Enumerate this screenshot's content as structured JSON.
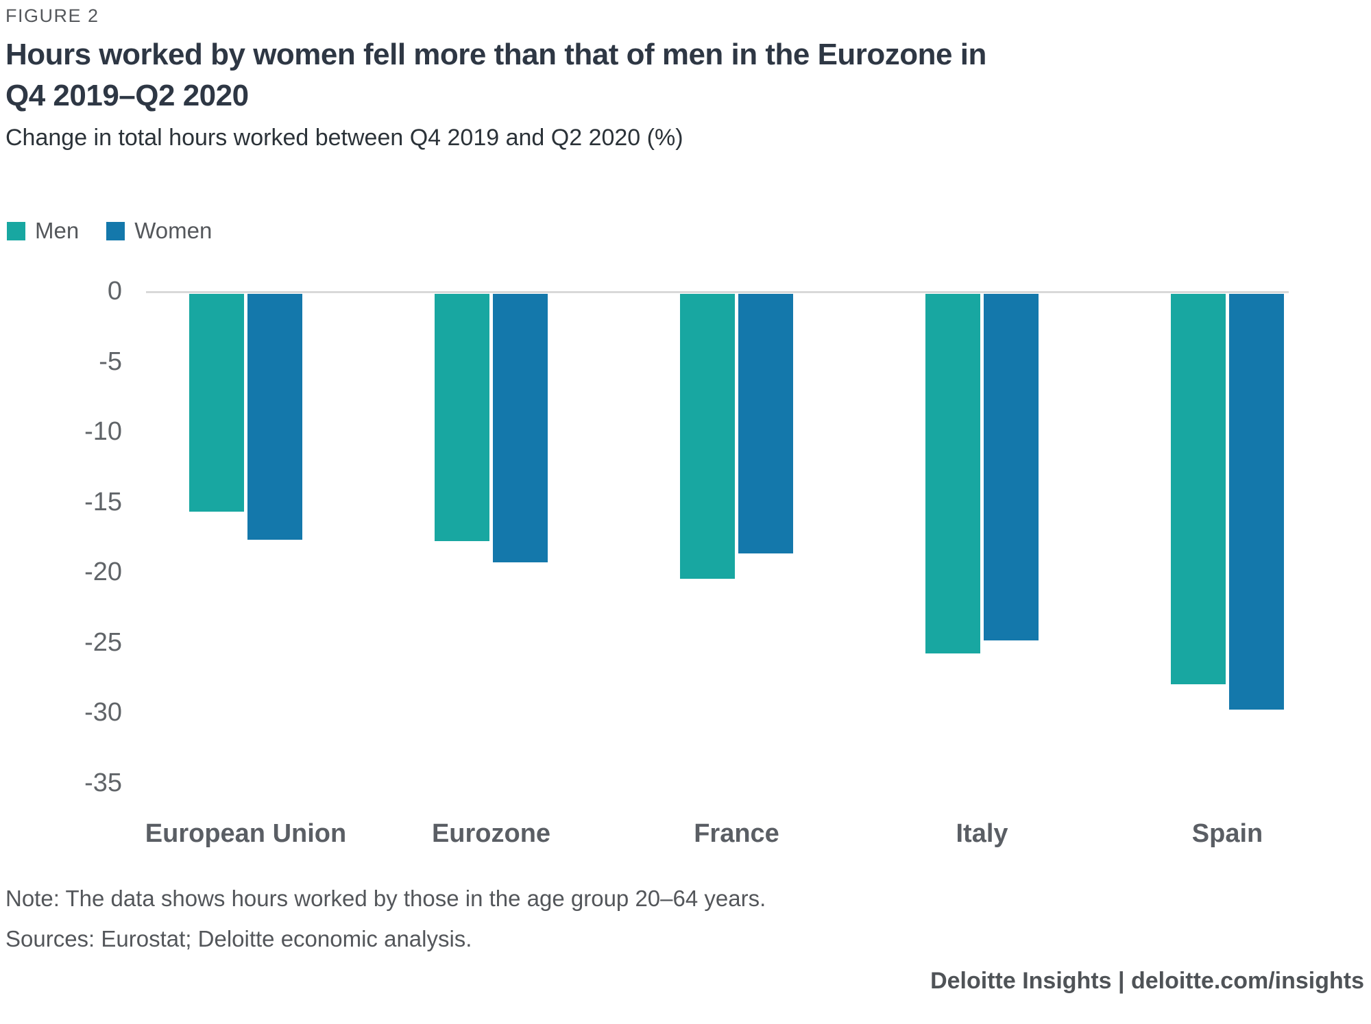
{
  "figure_label": "FIGURE 2",
  "title_line1": "Hours worked by women fell more than that of men in the Eurozone in",
  "title_line2": "Q4 2019–Q2 2020",
  "subtitle": "Change in total hours worked between Q4 2019 and Q2 2020 (%)",
  "footer": {
    "note": "Note: The data shows hours worked by those in the age group 20–64 years.",
    "sources": "Sources: Eurostat; Deloitte economic analysis.",
    "branding": "Deloitte Insights | deloitte.com/insights"
  },
  "chart_data": {
    "type": "bar",
    "title": "Hours worked by women fell more than that of men in the Eurozone in Q4 2019–Q2 2020",
    "subtitle": "Change in total hours worked between Q4 2019 and Q2 2020 (%)",
    "categories": [
      "European Union",
      "Eurozone",
      "France",
      "Italy",
      "Spain"
    ],
    "series": [
      {
        "name": "Men",
        "color": "#18A7A1",
        "values": [
          -15.5,
          -17.6,
          -20.3,
          -25.6,
          -27.8
        ]
      },
      {
        "name": "Women",
        "color": "#1478AB",
        "values": [
          -17.5,
          -19.1,
          -18.5,
          -24.7,
          -29.6
        ]
      }
    ],
    "xlabel": "",
    "ylabel": "",
    "ylim": [
      -35,
      0
    ],
    "yticks": [
      0,
      -5,
      -10,
      -15,
      -20,
      -25,
      -30,
      -35
    ],
    "grid": false,
    "legend_position": "top-left",
    "axis_line_color": "#D9D9D9"
  }
}
